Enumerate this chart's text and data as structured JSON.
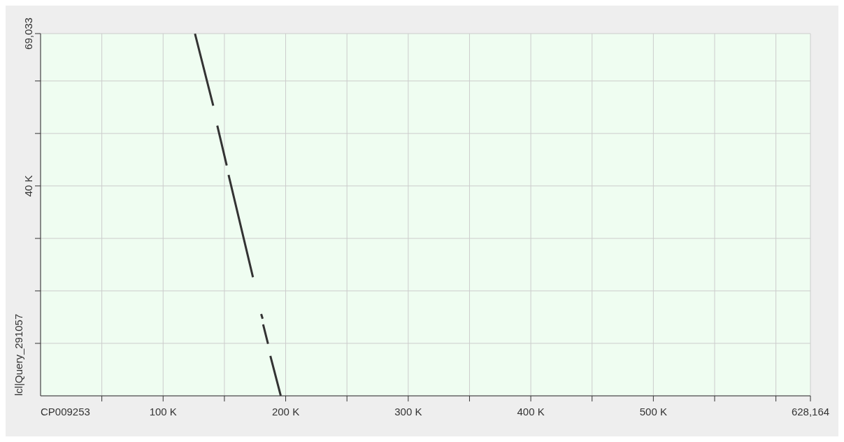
{
  "chart_data": {
    "type": "line",
    "xlabel": "CP009253",
    "ylabel": "lcl|Query_291057",
    "x": [
      126000,
      140900,
      142500,
      144200,
      151900,
      152600,
      153400,
      173300,
      176500,
      180000,
      181200,
      181400,
      181600,
      185600,
      186500,
      187500,
      196000
    ],
    "series": [
      {
        "color": "#333333",
        "values": [
          69000,
          55300,
          null,
          51500,
          43900,
          null,
          42100,
          22600,
          null,
          15600,
          14700,
          null,
          13600,
          9900,
          null,
          7600,
          0
        ]
      }
    ],
    "xlim": [
      0,
      628164
    ],
    "xticks": [
      {
        "value": 50000,
        "label": null
      },
      {
        "value": 100000,
        "label": "100 K"
      },
      {
        "value": 150000,
        "label": null
      },
      {
        "value": 200000,
        "label": "200 K"
      },
      {
        "value": 250000,
        "label": null
      },
      {
        "value": 300000,
        "label": "300 K"
      },
      {
        "value": 350000,
        "label": null
      },
      {
        "value": 400000,
        "label": "400 K"
      },
      {
        "value": 450000,
        "label": null
      },
      {
        "value": 500000,
        "label": "500 K"
      },
      {
        "value": 550000,
        "label": null
      },
      {
        "value": 600000,
        "label": null
      },
      {
        "value": 628164,
        "label": "628,164"
      }
    ],
    "ylim": [
      0,
      69033
    ],
    "yticks": [
      {
        "value": 10000,
        "label": null
      },
      {
        "value": 20000,
        "label": null
      },
      {
        "value": 30000,
        "label": null
      },
      {
        "value": 40000,
        "label": "40 K"
      },
      {
        "value": 50000,
        "label": null
      },
      {
        "value": 60000,
        "label": null
      },
      {
        "value": 69033,
        "label": "69,033"
      }
    ],
    "grid": true,
    "marker": "none",
    "line_style": "solid",
    "legend": false
  }
}
